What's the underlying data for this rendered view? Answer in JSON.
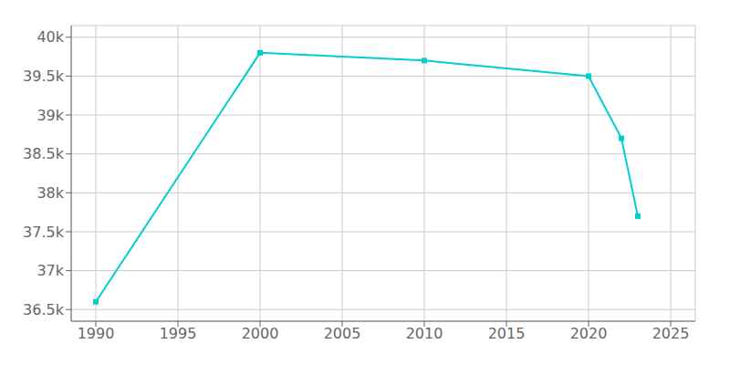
{
  "chart_data": {
    "type": "line",
    "x": [
      1990,
      2000,
      2010,
      2020,
      2022,
      2023
    ],
    "values": [
      36600,
      39800,
      39700,
      39500,
      38700,
      37700
    ],
    "color": "#00CED1",
    "marker": "square",
    "xlim": [
      1988.5,
      2026.5
    ],
    "ylim": [
      36350,
      40150
    ],
    "xticks": [
      1990,
      1995,
      2000,
      2005,
      2010,
      2015,
      2020,
      2025
    ],
    "yticks": [
      {
        "value": 36500,
        "label": "36.5k"
      },
      {
        "value": 37000,
        "label": "37k"
      },
      {
        "value": 37500,
        "label": "37.5k"
      },
      {
        "value": 38000,
        "label": "38k"
      },
      {
        "value": 38500,
        "label": "38.5k"
      },
      {
        "value": 39000,
        "label": "39k"
      },
      {
        "value": 39500,
        "label": "39.5k"
      },
      {
        "value": 40000,
        "label": "40k"
      }
    ],
    "grid": true
  }
}
